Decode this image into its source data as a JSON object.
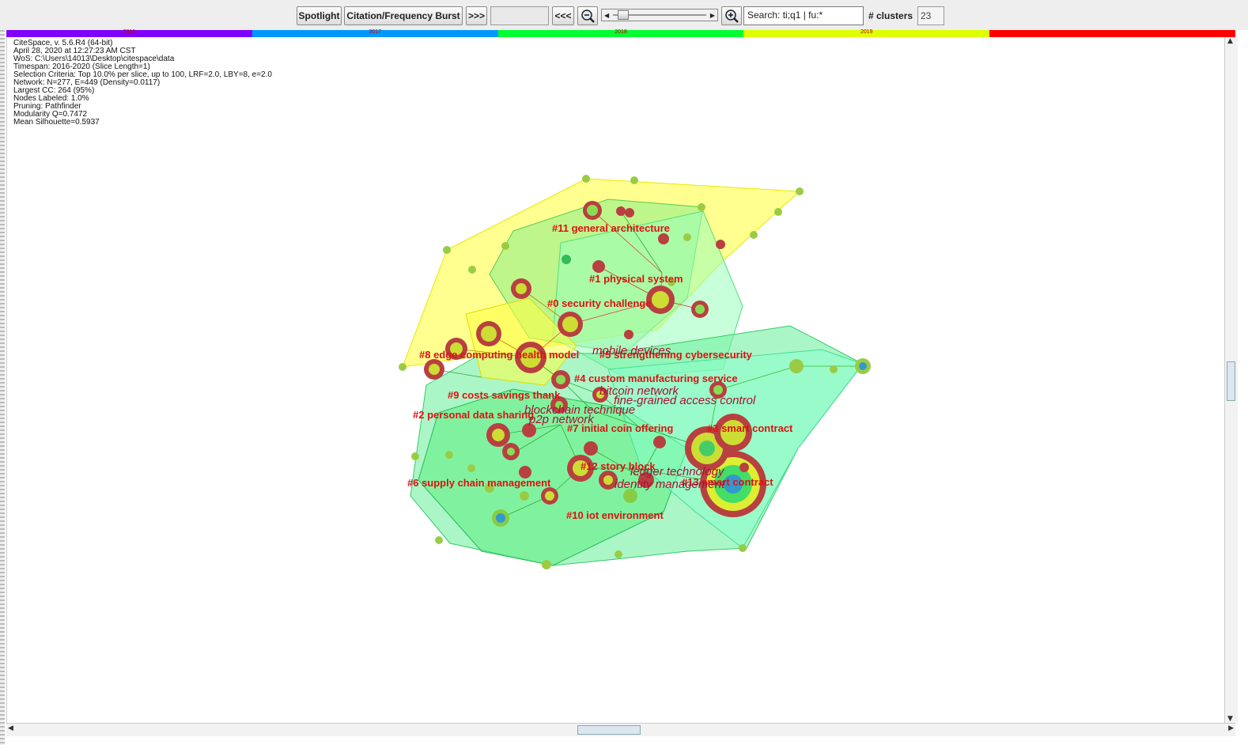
{
  "toolbar": {
    "spotlight": "Spotlight",
    "burst": "Citation/Frequency Burst",
    "next": ">>>",
    "prev": "<<<",
    "zoom_out_icon": "zoom-out-icon",
    "zoom_in_icon": "zoom-in-icon",
    "search_value": "Search: ti;q1 | fu:*",
    "clusters_label": "# clusters",
    "clusters_value": "23"
  },
  "timeline": {
    "years": [
      "2016",
      "2017",
      "2018",
      "2019",
      ""
    ],
    "colors": [
      "#8000ff",
      "#0099ff",
      "#00ff33",
      "#ddff00",
      "#ff0000"
    ]
  },
  "info_lines": [
    "CiteSpace, v. 5.6.R4 (64-bit)",
    "April 28, 2020 at 12:27:23 AM CST",
    "WoS: C:\\Users\\14013\\Desktop\\citespace\\data",
    "Timespan: 2016-2020 (Slice Length=1)",
    "Selection Criteria: Top 10.0% per slice, up to 100, LRF=2.0, LBY=8, e=2.0",
    "Network: N=277, E=449 (Density=0.0117)",
    "Largest CC: 264 (95%)",
    "Nodes Labeled: 1.0%",
    "Pruning: Pathfinder",
    "Modularity Q=0.7472",
    "Mean Silhouette=0.5937"
  ],
  "cluster_labels": [
    "#11 general architecture",
    "#1 physical system",
    "#0 security challenge",
    "#8 edge computing health model",
    "#5 strengthening cybersecurity",
    "#4 custom manufacturing service",
    "#9 costs savings thank",
    "#2 personal data sharing",
    "#7 initial coin offering",
    "#3 smart contract",
    "#12 story block",
    "#13 smart contract",
    "#6 supply chain management",
    "#10 iot environment"
  ],
  "term_labels": [
    "mobile devices",
    "bitcoin network",
    "fine-grained access control",
    "blockchain technique",
    "p2p network",
    "ledger technology",
    "identity management"
  ]
}
